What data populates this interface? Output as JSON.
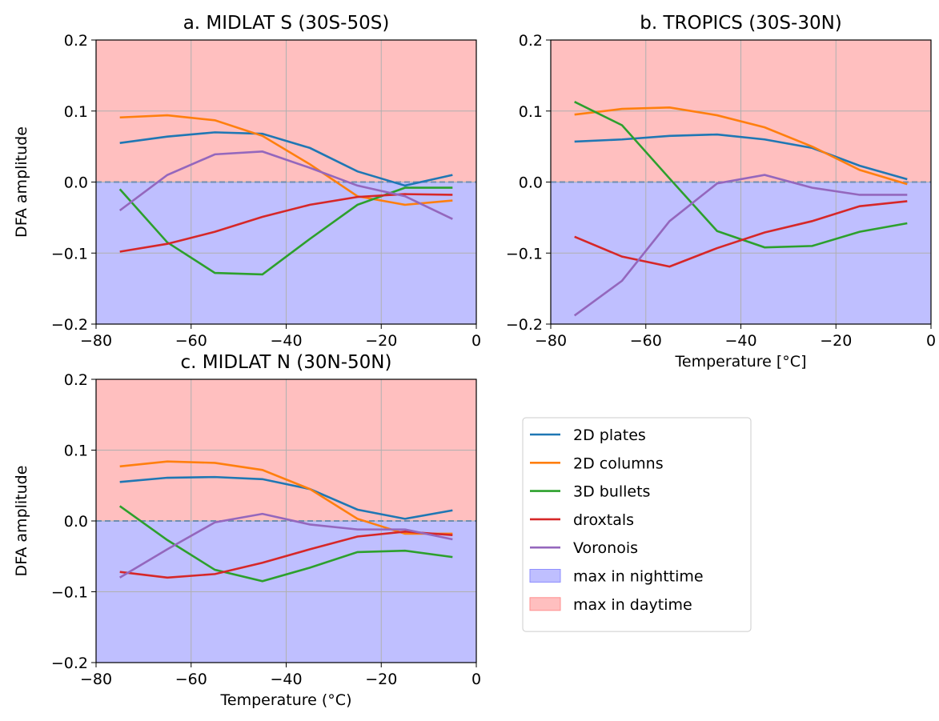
{
  "chart_data": [
    {
      "type": "line",
      "title": "a. MIDLAT S (30S-50S)",
      "ylabel": "DFA amplitude",
      "x": [
        -75,
        -65,
        -55,
        -45,
        -35,
        -25,
        -15,
        -5
      ],
      "xlim": [
        -80,
        0
      ],
      "ylim": [
        -0.2,
        0.2
      ],
      "xticks": [
        {
          "value": -80,
          "label": "−80"
        },
        {
          "value": -60,
          "label": "−60"
        },
        {
          "value": -40,
          "label": "−40"
        },
        {
          "value": -20,
          "label": "−20"
        },
        0
      ],
      "yticks": [
        {
          "value": -0.2,
          "label": "−0.2"
        },
        {
          "value": -0.1,
          "label": "−0.1"
        },
        {
          "value": 0,
          "label": "0.0"
        },
        0.1,
        0.2
      ],
      "grid": true,
      "hline": 0,
      "regions": [
        {
          "name": "max in nighttime",
          "color": "#bfbfff",
          "range": [
            -0.2,
            0
          ]
        },
        {
          "name": "max in daytime",
          "color": "#ffbfbf",
          "range": [
            0,
            0.2
          ]
        }
      ],
      "series": [
        {
          "name": "2D plates",
          "color": "#1f77b4",
          "values": [
            0.055,
            0.064,
            0.07,
            0.068,
            0.048,
            0.015,
            -0.005,
            0.01
          ]
        },
        {
          "name": "2D columns",
          "color": "#ff7f0e",
          "values": [
            0.091,
            0.094,
            0.087,
            0.065,
            0.025,
            -0.02,
            -0.032,
            -0.026
          ]
        },
        {
          "name": "3D bullets",
          "color": "#2ca02c",
          "values": [
            -0.01,
            -0.085,
            -0.128,
            -0.13,
            -0.08,
            -0.032,
            -0.008,
            -0.008
          ]
        },
        {
          "name": "droxtals",
          "color": "#d62728",
          "values": [
            -0.098,
            -0.087,
            -0.07,
            -0.049,
            -0.032,
            -0.021,
            -0.017,
            -0.018
          ]
        },
        {
          "name": "Voronois",
          "color": "#9467bd",
          "values": [
            -0.04,
            0.01,
            0.039,
            0.043,
            0.02,
            -0.005,
            -0.02,
            -0.052
          ]
        }
      ]
    },
    {
      "type": "line",
      "title": "b. TROPICS (30S-30N)",
      "xlabel": "Temperature [°C]",
      "x": [
        -75,
        -65,
        -55,
        -45,
        -35,
        -25,
        -15,
        -5
      ],
      "xlim": [
        -80,
        0
      ],
      "ylim": [
        -0.2,
        0.2
      ],
      "xticks": [
        {
          "value": -80,
          "label": "−80"
        },
        {
          "value": -60,
          "label": "−60"
        },
        {
          "value": -40,
          "label": "−40"
        },
        {
          "value": -20,
          "label": "−20"
        },
        0
      ],
      "yticks": [
        {
          "value": -0.2,
          "label": "−0.2"
        },
        {
          "value": -0.1,
          "label": "−0.1"
        },
        {
          "value": 0,
          "label": "0.0"
        },
        0.1,
        0.2
      ],
      "grid": true,
      "hline": 0,
      "regions": [
        {
          "name": "max in nighttime",
          "color": "#bfbfff",
          "range": [
            -0.2,
            0
          ]
        },
        {
          "name": "max in daytime",
          "color": "#ffbfbf",
          "range": [
            0,
            0.2
          ]
        }
      ],
      "series": [
        {
          "name": "2D plates",
          "color": "#1f77b4",
          "values": [
            0.057,
            0.06,
            0.065,
            0.067,
            0.06,
            0.048,
            0.023,
            0.004
          ]
        },
        {
          "name": "2D columns",
          "color": "#ff7f0e",
          "values": [
            0.095,
            0.103,
            0.105,
            0.094,
            0.077,
            0.05,
            0.017,
            -0.003
          ]
        },
        {
          "name": "3D bullets",
          "color": "#2ca02c",
          "values": [
            0.113,
            0.08,
            0.005,
            -0.069,
            -0.092,
            -0.09,
            -0.07,
            -0.058
          ]
        },
        {
          "name": "droxtals",
          "color": "#d62728",
          "values": [
            -0.077,
            -0.105,
            -0.119,
            -0.093,
            -0.071,
            -0.055,
            -0.034,
            -0.027
          ]
        },
        {
          "name": "Voronois",
          "color": "#9467bd",
          "values": [
            -0.188,
            -0.139,
            -0.055,
            -0.002,
            0.01,
            -0.008,
            -0.018,
            -0.018
          ]
        }
      ]
    },
    {
      "type": "line",
      "title": "c. MIDLAT N (30N-50N)",
      "ylabel": "DFA amplitude",
      "xlabel": "Temperature (°C)",
      "x": [
        -75,
        -65,
        -55,
        -45,
        -35,
        -25,
        -15,
        -5
      ],
      "xlim": [
        -80,
        0
      ],
      "ylim": [
        -0.2,
        0.2
      ],
      "xticks": [
        {
          "value": -80,
          "label": "−80"
        },
        {
          "value": -60,
          "label": "−60"
        },
        {
          "value": -40,
          "label": "−40"
        },
        {
          "value": -20,
          "label": "−20"
        },
        0
      ],
      "yticks": [
        {
          "value": -0.2,
          "label": "−0.2"
        },
        {
          "value": -0.1,
          "label": "−0.1"
        },
        {
          "value": 0,
          "label": "0.0"
        },
        0.1,
        0.2
      ],
      "grid": true,
      "hline": 0,
      "regions": [
        {
          "name": "max in nighttime",
          "color": "#bfbfff",
          "range": [
            -0.2,
            0
          ]
        },
        {
          "name": "max in daytime",
          "color": "#ffbfbf",
          "range": [
            0,
            0.2
          ]
        }
      ],
      "series": [
        {
          "name": "2D plates",
          "color": "#1f77b4",
          "values": [
            0.055,
            0.061,
            0.062,
            0.059,
            0.045,
            0.016,
            0.003,
            0.015
          ]
        },
        {
          "name": "2D columns",
          "color": "#ff7f0e",
          "values": [
            0.077,
            0.084,
            0.082,
            0.072,
            0.045,
            0.003,
            -0.018,
            -0.018
          ]
        },
        {
          "name": "3D bullets",
          "color": "#2ca02c",
          "values": [
            0.021,
            -0.027,
            -0.069,
            -0.085,
            -0.066,
            -0.044,
            -0.042,
            -0.051
          ]
        },
        {
          "name": "droxtals",
          "color": "#d62728",
          "values": [
            -0.072,
            -0.08,
            -0.075,
            -0.059,
            -0.04,
            -0.022,
            -0.015,
            -0.02
          ]
        },
        {
          "name": "Voronois",
          "color": "#9467bd",
          "values": [
            -0.08,
            -0.04,
            -0.002,
            0.01,
            -0.005,
            -0.012,
            -0.012,
            -0.026
          ]
        }
      ]
    }
  ]
}
